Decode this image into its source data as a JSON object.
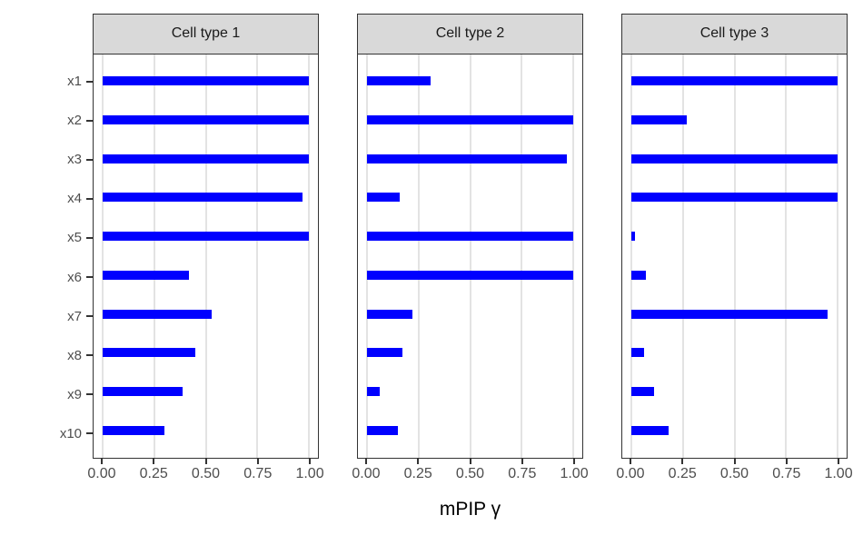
{
  "chart_data": {
    "type": "bar",
    "orientation": "horizontal",
    "title": "",
    "xlabel": "mPIP γ",
    "ylabel": "",
    "xlim": [
      0,
      1
    ],
    "x_ticks": [
      "0.00",
      "0.25",
      "0.50",
      "0.75",
      "1.00"
    ],
    "x_tick_values": [
      0,
      0.25,
      0.5,
      0.75,
      1.0
    ],
    "categories": [
      "x1",
      "x2",
      "x3",
      "x4",
      "x5",
      "x6",
      "x7",
      "x8",
      "x9",
      "x10"
    ],
    "facets": [
      {
        "label": "Cell type 1",
        "values": [
          1.0,
          1.0,
          1.0,
          0.97,
          1.0,
          0.42,
          0.53,
          0.45,
          0.39,
          0.3
        ]
      },
      {
        "label": "Cell type 2",
        "values": [
          0.31,
          1.0,
          0.97,
          0.16,
          1.0,
          1.0,
          0.22,
          0.17,
          0.06,
          0.15
        ]
      },
      {
        "label": "Cell type 3",
        "values": [
          1.0,
          0.27,
          1.0,
          1.0,
          0.02,
          0.07,
          0.95,
          0.06,
          0.11,
          0.18
        ]
      }
    ],
    "grid": "vertical-major-only",
    "legend": "none",
    "colors": {
      "bar": "#0000ff",
      "strip_background": "#d9d9d9",
      "panel_border": "#333333",
      "gridline": "#e3e3e3",
      "axis_text": "#4d4d4d"
    }
  }
}
